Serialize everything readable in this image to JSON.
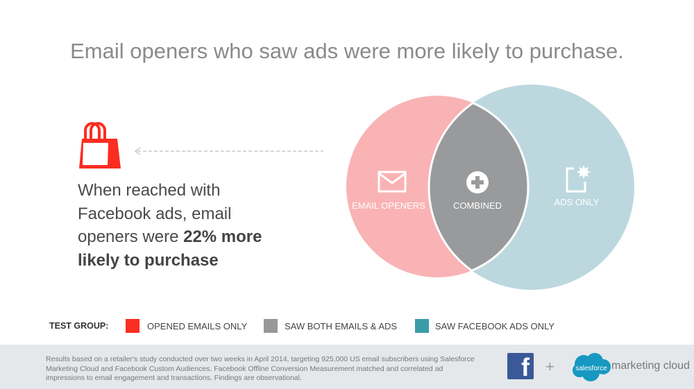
{
  "title": "Email openers who saw ads were more likely to purchase.",
  "claim": {
    "line1": "When reached with",
    "line2": "Facebook ads, email",
    "line3_prefix": "openers were ",
    "line3_bold": "22% more",
    "line4_bold": "likely to purchase"
  },
  "venn": {
    "left_label": "EMAIL OPENERS",
    "center_label": "COMBINED",
    "right_label": "ADS ONLY",
    "colors": {
      "left": "#f9b3b5",
      "center": "#999a9c",
      "right": "#bcd8de"
    }
  },
  "legend": {
    "title": "TEST GROUP:",
    "items": [
      {
        "label": "OPENED EMAILS ONLY",
        "color": "#fb2d20"
      },
      {
        "label": "SAW BOTH EMAILS & ADS",
        "color": "#98989a"
      },
      {
        "label": "SAW FACEBOOK ADS ONLY",
        "color": "#3a9ca8"
      }
    ]
  },
  "footer": {
    "note": "Results based on a retailer's study conducted over two weeks in April 2014, targeting 925,000 US email subscribers using Salesforce Marketing Cloud and Facebook Custom Audiences. Facebook Offline Conversion Measurement matched and correlated ad impressions to email engagement and transactions. Findings are observational.",
    "fb_letter": "f",
    "plus": "+",
    "salesforce": "salesforce",
    "marketing_cloud": "marketing cloud"
  }
}
